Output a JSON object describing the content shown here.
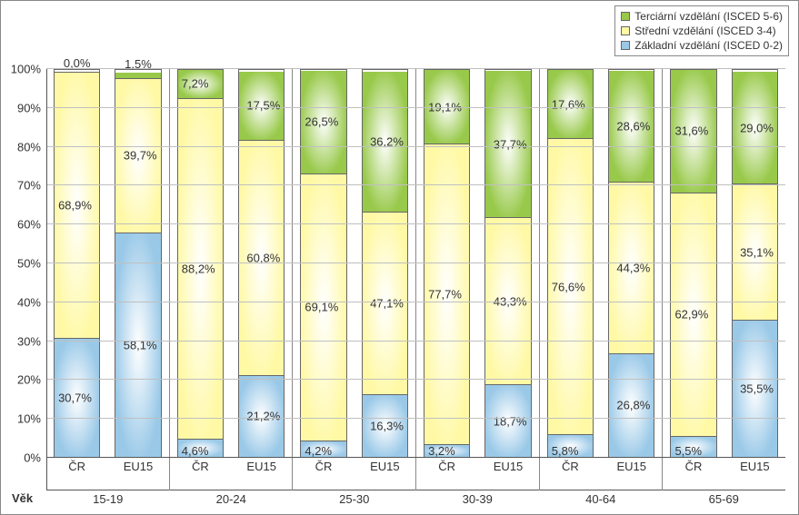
{
  "chart": {
    "type": "stacked-bar",
    "legend": [
      {
        "label": "Terciární vzdělání (ISCED 5-6)",
        "color": "#98c94a"
      },
      {
        "label": "Střední vzdělání (ISCED 3-4)",
        "color": "#fff9a6"
      },
      {
        "label": "Základní vzdělání (ISCED 0-2)",
        "color": "#9ac9e8"
      }
    ],
    "colors": {
      "tertiary": "#98c94a",
      "secondary": "#fff9a6",
      "basic": "#9ac9e8",
      "grid": "#bfbfbf",
      "border": "#888888",
      "axis": "#555555",
      "background": "#ffffff"
    },
    "ylim": [
      0,
      100
    ],
    "ytick_step": 10,
    "y_suffix": "%",
    "x_axis_label": "Věk",
    "groups": [
      {
        "age": "15-19",
        "bars": [
          {
            "region": "ČR",
            "basic": 30.7,
            "secondary": 68.9,
            "tertiary": 0.0,
            "labels": {
              "basic": "30,7%",
              "secondary": "68,9%",
              "tertiary": "0,0%"
            },
            "tertiary_above": true
          },
          {
            "region": "EU15",
            "basic": 58.1,
            "secondary": 39.7,
            "tertiary": 1.5,
            "labels": {
              "basic": "58,1%",
              "secondary": "39,7%",
              "tertiary": "1,5%"
            },
            "tertiary_above": true
          }
        ]
      },
      {
        "age": "20-24",
        "bars": [
          {
            "region": "ČR",
            "basic": 4.6,
            "secondary": 88.2,
            "tertiary": 7.2,
            "labels": {
              "basic": "4,6%",
              "secondary": "88,2%",
              "tertiary": "7,2%"
            }
          },
          {
            "region": "EU15",
            "basic": 21.2,
            "secondary": 60.8,
            "tertiary": 17.5,
            "labels": {
              "basic": "21,2%",
              "secondary": "60,8%",
              "tertiary": "17,5%"
            }
          }
        ]
      },
      {
        "age": "25-30",
        "bars": [
          {
            "region": "ČR",
            "basic": 4.2,
            "secondary": 69.1,
            "tertiary": 26.5,
            "labels": {
              "basic": "4,2%",
              "secondary": "69,1%",
              "tertiary": "26,5%"
            }
          },
          {
            "region": "EU15",
            "basic": 16.3,
            "secondary": 47.1,
            "tertiary": 36.2,
            "labels": {
              "basic": "16,3%",
              "secondary": "47,1%",
              "tertiary": "36,2%"
            }
          }
        ]
      },
      {
        "age": "30-39",
        "bars": [
          {
            "region": "ČR",
            "basic": 3.2,
            "secondary": 77.7,
            "tertiary": 19.1,
            "labels": {
              "basic": "3,2%",
              "secondary": "77,7%",
              "tertiary": "19,1%"
            }
          },
          {
            "region": "EU15",
            "basic": 18.7,
            "secondary": 43.3,
            "tertiary": 37.7,
            "labels": {
              "basic": "18,7%",
              "secondary": "43,3%",
              "tertiary": "37,7%"
            }
          }
        ]
      },
      {
        "age": "40-64",
        "bars": [
          {
            "region": "ČR",
            "basic": 5.8,
            "secondary": 76.6,
            "tertiary": 17.6,
            "labels": {
              "basic": "5,8%",
              "secondary": "76,6%",
              "tertiary": "17,6%"
            }
          },
          {
            "region": "EU15",
            "basic": 26.8,
            "secondary": 44.3,
            "tertiary": 28.6,
            "labels": {
              "basic": "26,8%",
              "secondary": "44,3%",
              "tertiary": "28,6%"
            }
          }
        ]
      },
      {
        "age": "65-69",
        "bars": [
          {
            "region": "ČR",
            "basic": 5.5,
            "secondary": 62.9,
            "tertiary": 31.6,
            "labels": {
              "basic": "5,5%",
              "secondary": "62,9%",
              "tertiary": "31,6%"
            }
          },
          {
            "region": "EU15",
            "basic": 35.5,
            "secondary": 35.1,
            "tertiary": 29.0,
            "labels": {
              "basic": "35,5%",
              "secondary": "35,1%",
              "tertiary": "29,0%"
            }
          }
        ]
      }
    ]
  }
}
